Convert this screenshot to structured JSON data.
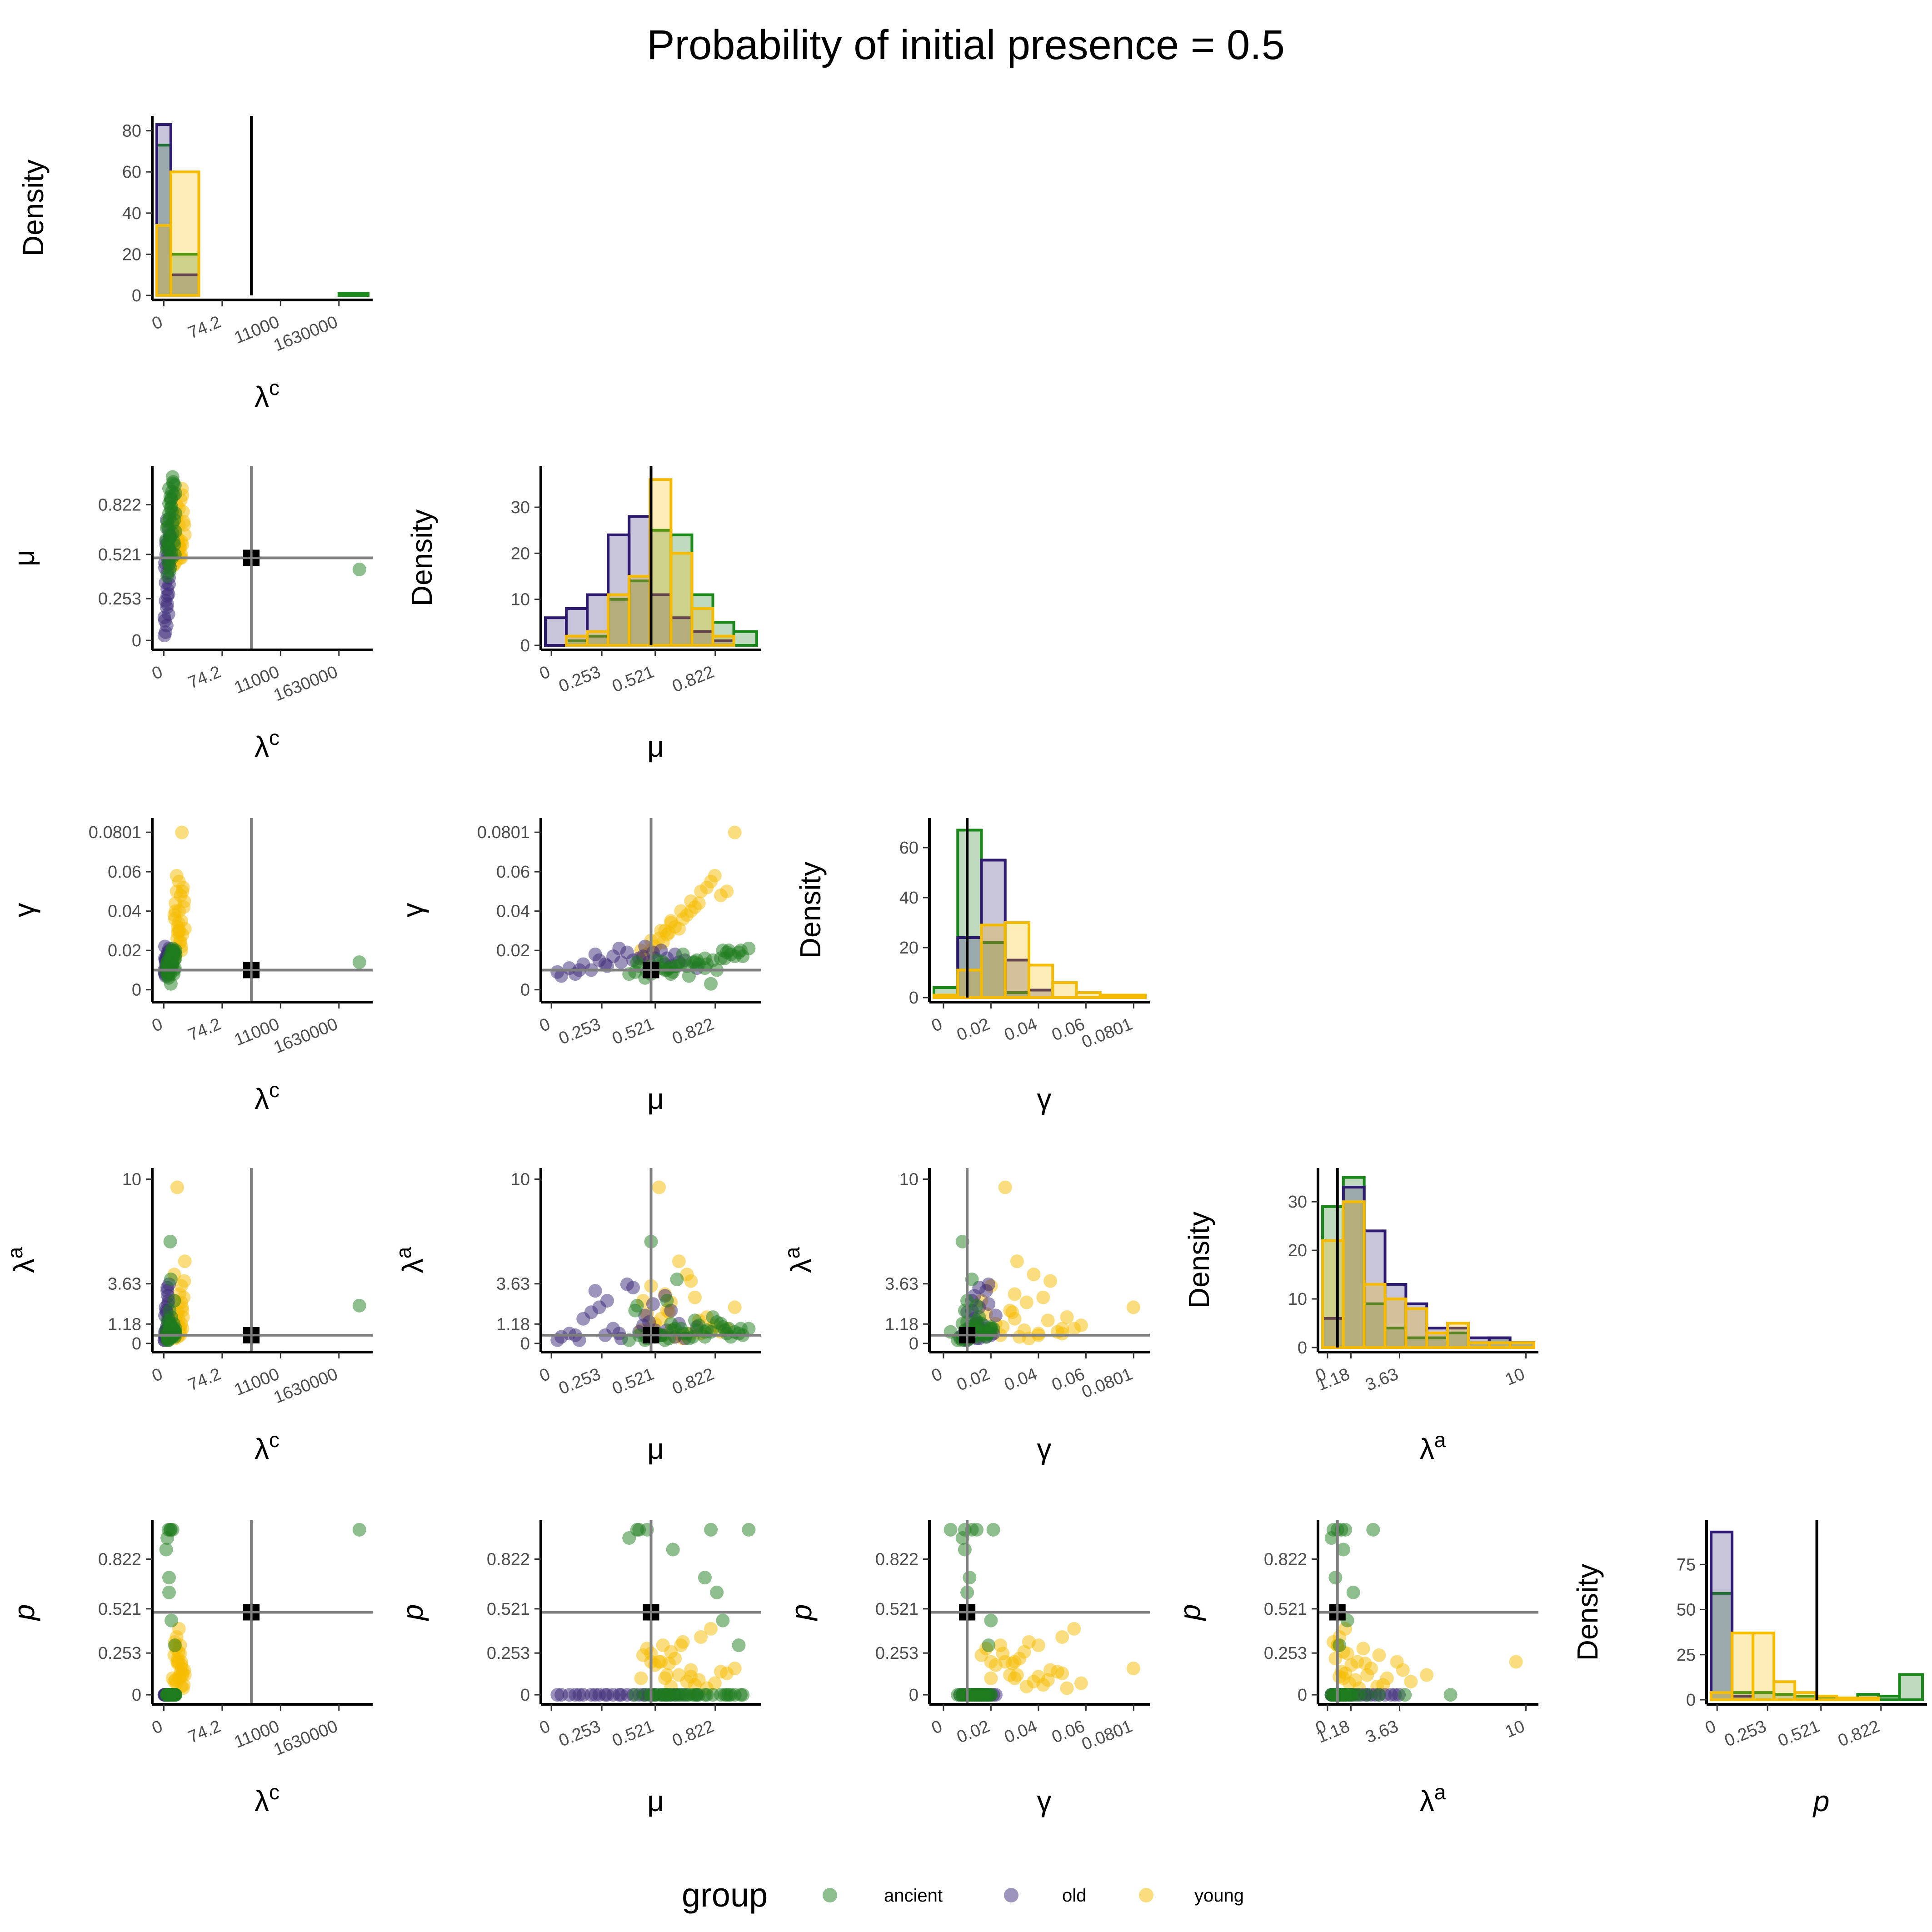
{
  "title": "Probability of initial presence = 0.5",
  "legend": {
    "title": "group",
    "position": "bottom",
    "items": [
      {
        "label": "ancient",
        "color": "#1e7b1e"
      },
      {
        "label": "old",
        "color": "#3b2a78"
      },
      {
        "label": "young",
        "color": "#f5bb00"
      }
    ]
  },
  "chart_data": {
    "type": "pairs",
    "density_label": "Density",
    "reference_lines": {
      "lambda_c": 1.5,
      "mu": 0.5,
      "gamma": 0.01,
      "lambda_a": 0.5,
      "p": 0.5
    },
    "variables": [
      {
        "key": "lambda_c",
        "label": "λ",
        "label_sup": "c",
        "italic": false,
        "ticks": [
          {
            "v": 0,
            "l": "0"
          },
          {
            "v": 1,
            "l": "74.2"
          },
          {
            "v": 2,
            "l": "11000"
          },
          {
            "v": 3,
            "l": "1630000"
          }
        ],
        "range": [
          -0.12,
          3.5
        ]
      },
      {
        "key": "mu",
        "label": "μ",
        "label_sup": "",
        "italic": false,
        "ticks": [
          {
            "v": 0,
            "l": "0"
          },
          {
            "v": 0.253,
            "l": "0.253"
          },
          {
            "v": 0.521,
            "l": "0.521"
          },
          {
            "v": 0.822,
            "l": "0.822"
          }
        ],
        "range": [
          -0.03,
          1.03
        ]
      },
      {
        "key": "gamma",
        "label": "γ",
        "label_sup": "",
        "italic": false,
        "ticks": [
          {
            "v": 0,
            "l": "0"
          },
          {
            "v": 0.02,
            "l": "0.02"
          },
          {
            "v": 0.04,
            "l": "0.04"
          },
          {
            "v": 0.06,
            "l": "0.06"
          },
          {
            "v": 0.0801,
            "l": "0.0801"
          }
        ],
        "range": [
          -0.004,
          0.085
        ]
      },
      {
        "key": "lambda_a",
        "label": "λ",
        "label_sup": "a",
        "italic": false,
        "ticks": [
          {
            "v": 0,
            "l": "0"
          },
          {
            "v": 1.18,
            "l": "1.18"
          },
          {
            "v": 3.63,
            "l": "3.63"
          },
          {
            "v": 10,
            "l": "10"
          }
        ],
        "range": [
          -0.25,
          10.4
        ]
      },
      {
        "key": "p",
        "label": "p",
        "label_sup": "",
        "italic": true,
        "ticks": [
          {
            "v": 0,
            "l": "0"
          },
          {
            "v": 0.253,
            "l": "0.253"
          },
          {
            "v": 0.521,
            "l": "0.521"
          },
          {
            "v": 0.822,
            "l": "0.822"
          }
        ],
        "range": [
          -0.03,
          1.03
        ]
      }
    ],
    "histograms": [
      {
        "var": "lambda_c",
        "ylim": [
          0,
          85
        ],
        "yticks": [
          0,
          20,
          40,
          60,
          80
        ],
        "edges": [
          -0.12,
          0.12,
          0.6,
          0.9,
          1.2,
          1.5,
          1.8,
          2.1,
          2.4,
          2.7,
          3.0,
          3.5
        ],
        "series": {
          "ancient": [
            73,
            20,
            0,
            0,
            0,
            0,
            0,
            0,
            0,
            0,
            1
          ],
          "old": [
            83,
            10,
            0,
            0,
            0,
            0,
            0,
            0,
            0,
            0,
            0
          ],
          "young": [
            34,
            60,
            0,
            0,
            0,
            0,
            0,
            0,
            0,
            0,
            0
          ]
        }
      },
      {
        "var": "mu",
        "ylim": [
          0,
          38
        ],
        "yticks": [
          0,
          10,
          20,
          30
        ],
        "edges": [
          -0.03,
          0.075,
          0.18,
          0.285,
          0.39,
          0.495,
          0.6,
          0.705,
          0.81,
          0.915,
          1.03
        ],
        "series": {
          "ancient": [
            0,
            1,
            2,
            10,
            14,
            25,
            24,
            11,
            5,
            3
          ],
          "old": [
            6,
            8,
            11,
            24,
            28,
            11,
            6,
            3,
            1,
            0
          ],
          "young": [
            0,
            2,
            3,
            11,
            15,
            36,
            20,
            8,
            2,
            0
          ]
        }
      },
      {
        "var": "gamma",
        "ylim": [
          0,
          70
        ],
        "yticks": [
          0,
          20,
          40,
          60
        ],
        "edges": [
          -0.004,
          0.006,
          0.016,
          0.026,
          0.036,
          0.046,
          0.056,
          0.066,
          0.076,
          0.085
        ],
        "series": {
          "ancient": [
            4,
            67,
            22,
            2,
            0,
            0,
            0,
            0,
            0
          ],
          "old": [
            0,
            24,
            55,
            15,
            3,
            0,
            0,
            0,
            0
          ],
          "young": [
            1,
            11,
            29,
            30,
            13,
            6,
            2,
            1,
            1
          ]
        }
      },
      {
        "var": "lambda_a",
        "ylim": [
          0,
          36
        ],
        "yticks": [
          0,
          10,
          20,
          30
        ],
        "edges": [
          -0.25,
          0.8,
          1.85,
          2.9,
          3.95,
          5.0,
          6.05,
          7.1,
          8.15,
          9.2,
          10.4
        ],
        "series": {
          "ancient": [
            29,
            35,
            9,
            4,
            2,
            2,
            3,
            1,
            2,
            1
          ],
          "old": [
            6,
            33,
            24,
            13,
            9,
            4,
            4,
            2,
            2,
            1
          ],
          "young": [
            22,
            30,
            13,
            10,
            8,
            3,
            5,
            1,
            1,
            1
          ]
        }
      },
      {
        "var": "p",
        "ylim": [
          0,
          97
        ],
        "yticks": [
          0,
          25,
          50,
          75
        ],
        "edges": [
          -0.03,
          0.075,
          0.18,
          0.285,
          0.39,
          0.495,
          0.6,
          0.705,
          0.81,
          0.915,
          1.03
        ],
        "series": {
          "ancient": [
            59,
            4,
            4,
            3,
            2,
            1,
            1,
            3,
            2,
            14
          ],
          "old": [
            93,
            2,
            0,
            0,
            0,
            0,
            0,
            0,
            0,
            0
          ],
          "young": [
            4,
            37,
            37,
            10,
            4,
            2,
            1,
            1,
            0,
            0
          ]
        }
      }
    ],
    "scatter_points": {
      "ancient": [
        [
          0.05,
          0.55,
          0.011,
          0.5,
          0.0
        ],
        [
          0.1,
          0.62,
          0.012,
          0.9,
          0.0
        ],
        [
          0.15,
          0.71,
          0.014,
          0.4,
          0.0
        ],
        [
          0.08,
          0.48,
          0.009,
          0.3,
          1.0
        ],
        [
          0.12,
          0.85,
          0.016,
          1.2,
          0.0
        ],
        [
          0.2,
          0.66,
          0.018,
          0.6,
          0.0
        ],
        [
          0.06,
          0.39,
          0.008,
          0.2,
          0.95
        ],
        [
          0.14,
          0.78,
          0.013,
          0.8,
          0.0
        ],
        [
          0.09,
          0.92,
          0.017,
          0.7,
          0.0
        ],
        [
          0.18,
          0.58,
          0.01,
          2.6,
          0.0
        ],
        [
          0.11,
          0.44,
          0.012,
          0.5,
          1.0
        ],
        [
          0.16,
          0.95,
          0.02,
          0.9,
          0.0
        ],
        [
          0.07,
          0.69,
          0.007,
          0.3,
          0.0
        ],
        [
          0.13,
          0.81,
          0.015,
          1.6,
          0.0
        ],
        [
          0.19,
          0.52,
          0.011,
          0.4,
          0.0
        ],
        [
          0.04,
          0.61,
          0.009,
          0.8,
          0.88
        ],
        [
          0.1,
          0.74,
          0.013,
          1.1,
          0.0
        ],
        [
          0.17,
          0.88,
          0.019,
          0.6,
          0.0
        ],
        [
          0.08,
          0.47,
          0.006,
          0.2,
          0.0
        ],
        [
          0.15,
          0.99,
          0.021,
          0.9,
          1.0
        ],
        [
          0.12,
          0.63,
          0.012,
          3.9,
          0.0
        ],
        [
          0.06,
          0.56,
          0.014,
          0.5,
          0.0
        ],
        [
          0.2,
          0.77,
          0.016,
          0.7,
          0.0
        ],
        [
          0.09,
          0.83,
          0.01,
          1.3,
          0.62
        ],
        [
          0.14,
          0.9,
          0.018,
          0.4,
          0.0
        ],
        [
          0.11,
          0.5,
          0.008,
          6.2,
          0.0
        ],
        [
          0.05,
          0.68,
          0.012,
          0.6,
          0.0
        ],
        [
          0.18,
          0.73,
          0.015,
          0.8,
          0.0
        ],
        [
          0.13,
          0.86,
          0.02,
          1.0,
          0.45
        ],
        [
          0.07,
          0.59,
          0.011,
          0.3,
          0.0
        ],
        [
          0.16,
          0.96,
          0.017,
          0.5,
          0.0
        ],
        [
          0.1,
          0.42,
          0.009,
          2.0,
          0.0
        ],
        [
          0.12,
          0.8,
          0.003,
          0.7,
          1.0
        ],
        [
          0.15,
          0.65,
          0.013,
          0.9,
          0.0
        ],
        [
          0.08,
          0.57,
          0.01,
          0.2,
          0.0
        ],
        [
          0.19,
          0.94,
          0.019,
          0.6,
          0.3
        ],
        [
          0.06,
          0.72,
          0.014,
          1.4,
          0.0
        ],
        [
          0.14,
          0.5,
          0.012,
          0.5,
          0.0
        ],
        [
          0.11,
          0.87,
          0.016,
          0.8,
          0.0
        ],
        [
          0.17,
          0.6,
          0.008,
          1.2,
          0.0
        ],
        [
          3.35,
          0.43,
          0.014,
          2.3,
          1.0
        ],
        [
          0.09,
          0.77,
          0.011,
          0.4,
          0.71
        ],
        [
          0.13,
          0.53,
          0.015,
          0.6,
          0.0
        ],
        [
          0.2,
          0.89,
          0.02,
          0.9,
          0.0
        ]
      ],
      "old": [
        [
          0.02,
          0.12,
          0.008,
          0.5,
          0.0
        ],
        [
          0.05,
          0.2,
          0.01,
          1.9,
          0.0
        ],
        [
          0.08,
          0.28,
          0.012,
          2.6,
          0.0
        ],
        [
          0.03,
          0.35,
          0.014,
          0.3,
          0.0
        ],
        [
          0.06,
          0.41,
          0.015,
          3.4,
          0.0
        ],
        [
          0.09,
          0.46,
          0.017,
          1.1,
          0.0
        ],
        [
          0.04,
          0.52,
          0.016,
          0.8,
          0.0
        ],
        [
          0.07,
          0.57,
          0.013,
          2.9,
          0.0
        ],
        [
          0.1,
          0.62,
          0.018,
          0.4,
          0.0
        ],
        [
          0.01,
          0.03,
          0.009,
          0.2,
          0.0
        ],
        [
          0.05,
          0.09,
          0.011,
          0.6,
          0.0
        ],
        [
          0.08,
          0.16,
          0.013,
          1.5,
          0.0
        ],
        [
          0.03,
          0.24,
          0.015,
          2.2,
          0.0
        ],
        [
          0.06,
          0.31,
          0.017,
          0.9,
          0.0
        ],
        [
          0.09,
          0.38,
          0.019,
          3.6,
          0.0
        ],
        [
          0.02,
          0.44,
          0.016,
          0.7,
          0.0
        ],
        [
          0.07,
          0.49,
          0.014,
          1.3,
          0.0
        ],
        [
          0.1,
          0.55,
          0.02,
          0.5,
          0.0
        ],
        [
          0.04,
          0.6,
          0.012,
          2.0,
          0.0
        ],
        [
          0.08,
          0.67,
          0.015,
          0.3,
          0.0
        ],
        [
          0.05,
          0.73,
          0.011,
          1.0,
          0.0
        ],
        [
          0.03,
          0.05,
          0.007,
          0.4,
          0.0
        ],
        [
          0.06,
          0.22,
          0.018,
          3.2,
          0.0
        ],
        [
          0.09,
          0.34,
          0.021,
          0.6,
          0.0
        ],
        [
          0.02,
          0.47,
          0.022,
          1.7,
          0.0
        ],
        [
          0.07,
          0.51,
          0.019,
          2.4,
          0.0
        ],
        [
          0.04,
          0.58,
          0.016,
          0.8,
          0.0
        ],
        [
          0.1,
          0.64,
          0.014,
          1.2,
          0.0
        ],
        [
          0.01,
          0.14,
          0.01,
          0.2,
          0.0
        ],
        [
          0.06,
          0.27,
          0.013,
          0.5,
          0.0
        ]
      ],
      "young": [
        [
          0.15,
          0.45,
          0.02,
          0.8,
          0.1
        ],
        [
          0.25,
          0.55,
          0.03,
          1.5,
          0.2
        ],
        [
          0.3,
          0.6,
          0.035,
          2.5,
          0.05
        ],
        [
          0.2,
          0.65,
          0.04,
          0.5,
          0.3
        ],
        [
          0.35,
          0.7,
          0.045,
          3.8,
          0.15
        ],
        [
          0.28,
          0.5,
          0.025,
          1.0,
          0.25
        ],
        [
          0.22,
          0.75,
          0.05,
          0.6,
          0.35
        ],
        [
          0.32,
          0.58,
          0.028,
          2.0,
          0.12
        ],
        [
          0.18,
          0.68,
          0.038,
          4.2,
          0.08
        ],
        [
          0.26,
          0.8,
          0.055,
          0.9,
          0.4
        ],
        [
          0.3,
          0.52,
          0.022,
          1.2,
          0.18
        ],
        [
          0.24,
          0.62,
          0.032,
          0.4,
          0.22
        ],
        [
          0.34,
          0.72,
          0.042,
          2.8,
          0.06
        ],
        [
          0.21,
          0.48,
          0.018,
          1.8,
          0.28
        ],
        [
          0.29,
          0.85,
          0.048,
          0.7,
          0.14
        ],
        [
          0.27,
          0.57,
          0.03,
          3.0,
          0.1
        ],
        [
          0.19,
          0.66,
          0.036,
          0.3,
          0.32
        ],
        [
          0.33,
          0.78,
          0.052,
          1.6,
          0.04
        ],
        [
          0.23,
          0.54,
          0.026,
          9.5,
          0.2
        ],
        [
          0.31,
          0.92,
          0.08,
          2.2,
          0.16
        ],
        [
          0.25,
          0.6,
          0.034,
          0.8,
          0.26
        ],
        [
          0.2,
          0.74,
          0.044,
          1.4,
          0.09
        ],
        [
          0.36,
          0.64,
          0.031,
          5.0,
          0.12
        ],
        [
          0.28,
          0.56,
          0.024,
          0.5,
          0.3
        ],
        [
          0.22,
          0.82,
          0.058,
          1.1,
          0.07
        ],
        [
          0.3,
          0.5,
          0.02,
          3.5,
          0.2
        ],
        [
          0.26,
          0.7,
          0.04,
          0.6,
          0.11
        ],
        [
          0.18,
          0.46,
          0.016,
          2.6,
          0.24
        ],
        [
          0.32,
          0.88,
          0.05,
          0.9,
          0.13
        ],
        [
          0.24,
          0.59,
          0.029,
          1.9,
          0.19
        ]
      ]
    }
  }
}
